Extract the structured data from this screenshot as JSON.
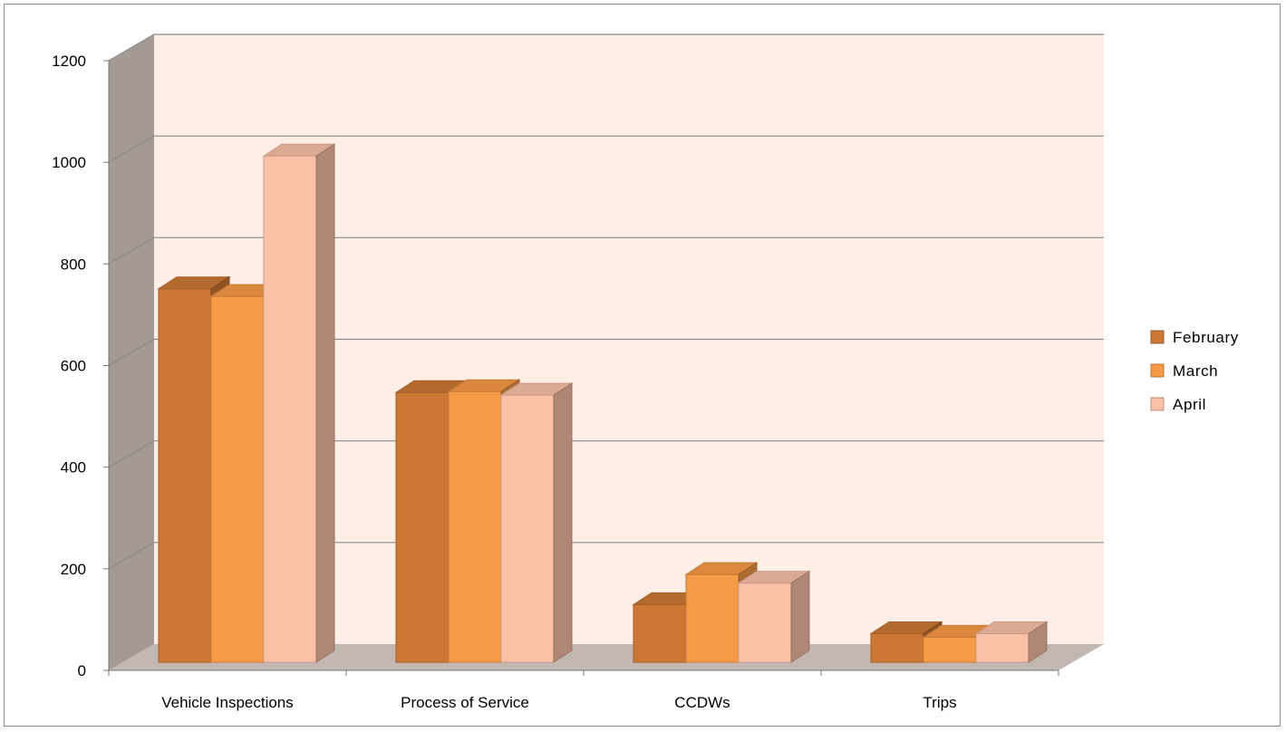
{
  "chart_data": {
    "type": "bar",
    "title": "",
    "xlabel": "",
    "ylabel": "",
    "categories": [
      "Vehicle Inspections",
      "Process of Service",
      "CCDWs",
      "Trips"
    ],
    "series": [
      {
        "name": "February",
        "values": [
          745,
          538,
          115,
          57
        ],
        "color": "#CC7733"
      },
      {
        "name": "March",
        "values": [
          730,
          540,
          175,
          50
        ],
        "color": "#F79A45"
      },
      {
        "name": "April",
        "values": [
          1010,
          533,
          158,
          57
        ],
        "color": "#FAC1A6"
      }
    ],
    "ylim": [
      0,
      1200
    ],
    "yticks": [
      0,
      200,
      400,
      600,
      800,
      1000,
      1200
    ],
    "grid": true,
    "legend_position": "right",
    "three_d": true,
    "colors": {
      "wall_back": "#FEEEE6",
      "wall_side": "#A59A93",
      "floor": "#C3B7B1",
      "gridline": "#8a8a8a"
    }
  }
}
